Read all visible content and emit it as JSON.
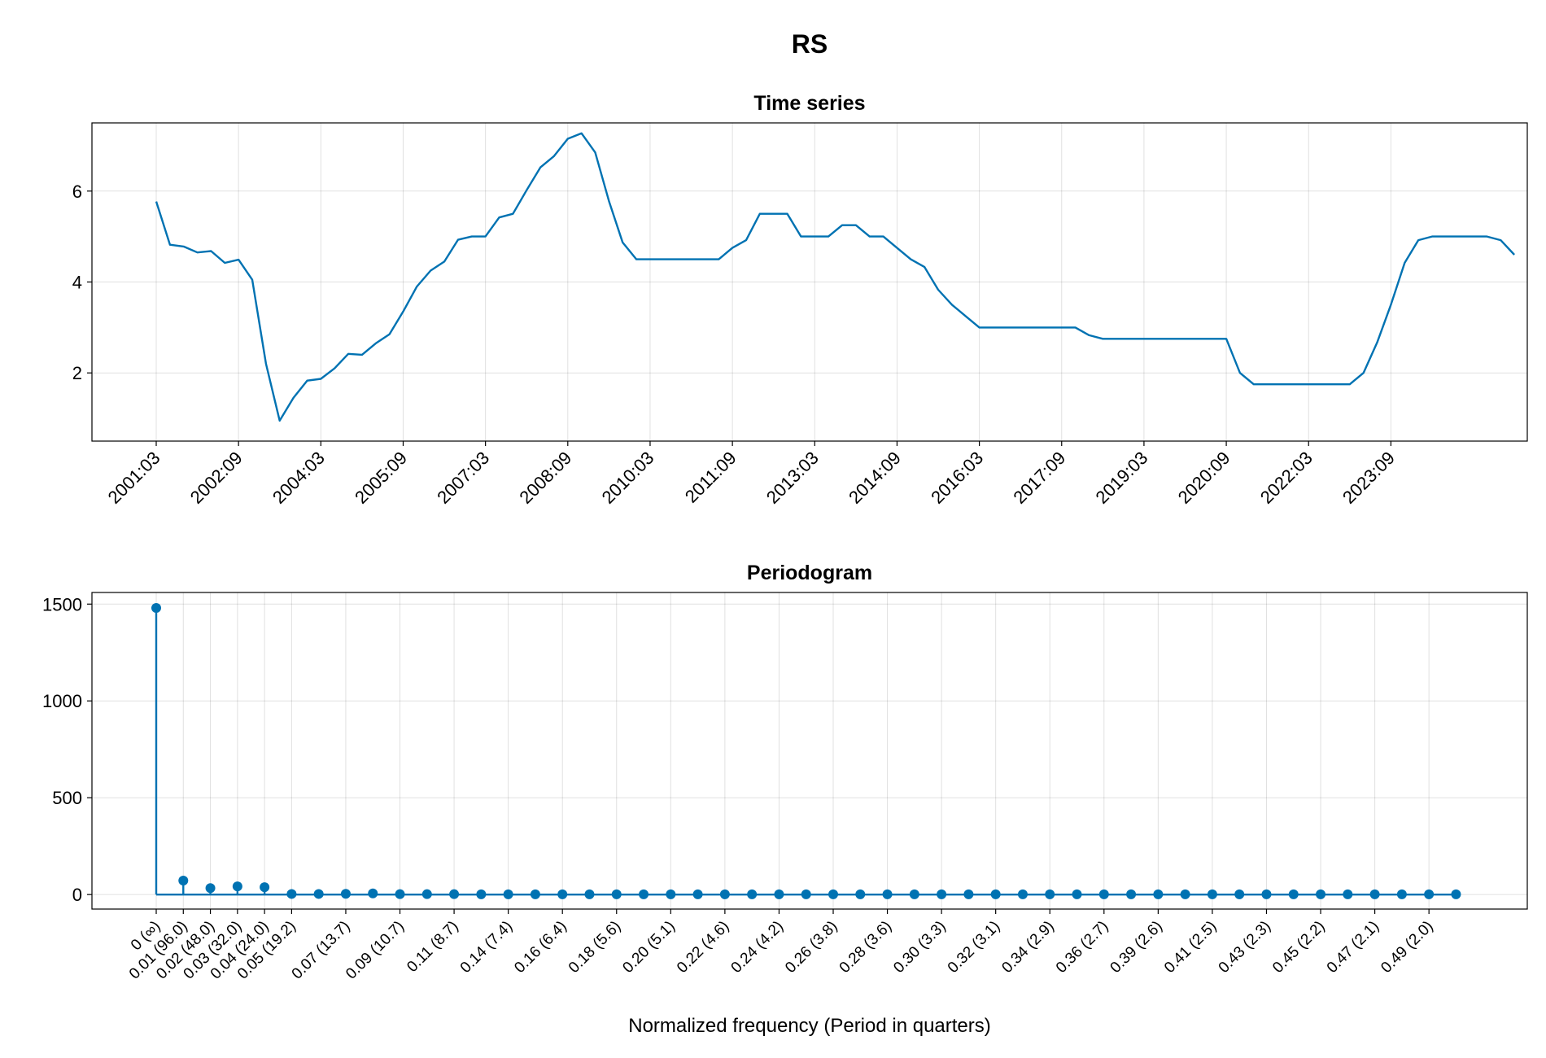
{
  "figure_title": "RS",
  "colors": {
    "series": "#0072b2"
  },
  "chart_data": [
    {
      "type": "line",
      "title": "Time series",
      "xlabel": "",
      "ylabel": "",
      "ylim": [
        0.5,
        7.5
      ],
      "y_ticks": [
        2,
        4,
        6
      ],
      "grid": true,
      "x_tick_indices": [
        0,
        6,
        12,
        18,
        24,
        30,
        36,
        42,
        48,
        54,
        60,
        66,
        72,
        78,
        84,
        90
      ],
      "x_tick_labels": [
        "2001:03",
        "2002:09",
        "2004:03",
        "2005:09",
        "2007:03",
        "2008:09",
        "2010:03",
        "2011:09",
        "2013:03",
        "2014:09",
        "2016:03",
        "2017:09",
        "2019:03",
        "2020:09",
        "2022:03",
        "2023:09"
      ],
      "values": [
        5.77,
        4.82,
        4.78,
        4.65,
        4.68,
        4.42,
        4.49,
        4.05,
        2.2,
        0.95,
        1.45,
        1.83,
        1.87,
        2.1,
        2.42,
        2.4,
        2.65,
        2.85,
        3.35,
        3.9,
        4.25,
        4.45,
        4.93,
        5.0,
        5.0,
        5.42,
        5.5,
        6.02,
        6.52,
        6.77,
        7.15,
        7.27,
        6.85,
        5.78,
        4.87,
        4.5,
        4.5,
        4.5,
        4.5,
        4.5,
        4.5,
        4.5,
        4.75,
        4.92,
        5.5,
        5.5,
        5.5,
        5.0,
        5.0,
        5.0,
        5.25,
        5.25,
        5.0,
        5.0,
        4.75,
        4.5,
        4.33,
        3.83,
        3.5,
        3.25,
        3.0,
        3.0,
        3.0,
        3.0,
        3.0,
        3.0,
        3.0,
        3.0,
        2.83,
        2.75,
        2.75,
        2.75,
        2.75,
        2.75,
        2.75,
        2.75,
        2.75,
        2.75,
        2.75,
        2.0,
        1.75,
        1.75,
        1.75,
        1.75,
        1.75,
        1.75,
        1.75,
        1.75,
        2.0,
        2.67,
        3.5,
        4.42,
        4.92,
        5.0,
        5.0,
        5.0,
        5.0,
        5.0,
        4.92,
        4.6
      ]
    },
    {
      "type": "stem",
      "title": "Periodogram",
      "xlabel": "Normalized frequency (Period in quarters)",
      "ylabel": "",
      "ylim": [
        -75,
        1560
      ],
      "y_ticks": [
        0,
        500,
        1000,
        1500
      ],
      "grid": true,
      "x_tick_indices": [
        0,
        1,
        2,
        3,
        4,
        5,
        7,
        9,
        11,
        13,
        15,
        17,
        19,
        21,
        23,
        25,
        27,
        29,
        31,
        33,
        35,
        37,
        39,
        41,
        43,
        45,
        47
      ],
      "x_tick_labels": [
        "0 (∞)",
        "0.01 (96.0)",
        "0.02 (48.0)",
        "0.03 (32.0)",
        "0.04 (24.0)",
        "0.05 (19.2)",
        "0.07 (13.7)",
        "0.09 (10.7)",
        "0.11 (8.7)",
        "0.14 (7.4)",
        "0.16 (6.4)",
        "0.18 (5.6)",
        "0.20 (5.1)",
        "0.22 (4.6)",
        "0.24 (4.2)",
        "0.26 (3.8)",
        "0.28 (3.6)",
        "0.30 (3.3)",
        "0.32 (3.1)",
        "0.34 (2.9)",
        "0.36 (2.7)",
        "0.39 (2.6)",
        "0.41 (2.5)",
        "0.43 (2.3)",
        "0.45 (2.2)",
        "0.47 (2.1)",
        "0.49 (2.0)"
      ],
      "values": [
        1480,
        72,
        33,
        42,
        38,
        3,
        3,
        4,
        6,
        2,
        2,
        2,
        1,
        1,
        1,
        1,
        1,
        1,
        1,
        1,
        1,
        1,
        1,
        1,
        1,
        1,
        1,
        1,
        1,
        1,
        1,
        1,
        1,
        1,
        1,
        1,
        1,
        1,
        1,
        1,
        1,
        1,
        1,
        1,
        1,
        1,
        1,
        1,
        1
      ]
    }
  ]
}
